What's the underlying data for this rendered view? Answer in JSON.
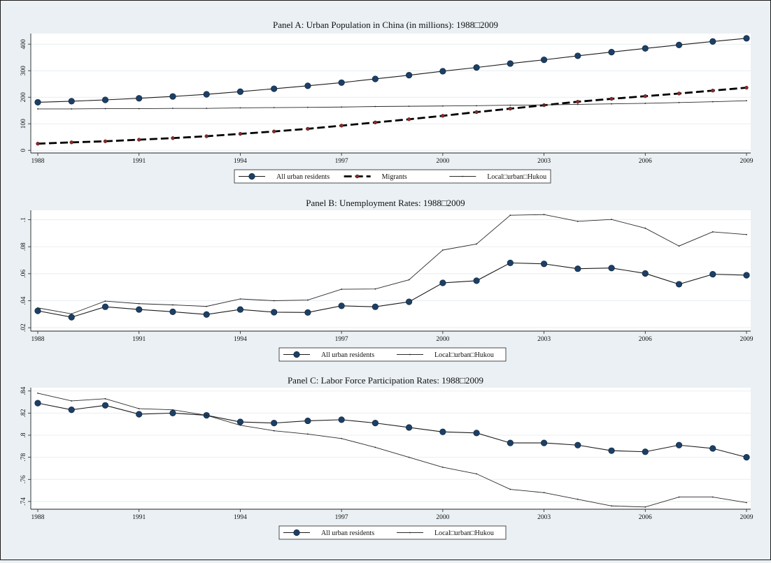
{
  "chart_data": [
    {
      "type": "line",
      "title": "Panel A: Urban Population in China (in millions): 1988□2009",
      "x": [
        1988,
        1989,
        1990,
        1991,
        1992,
        1993,
        1994,
        1995,
        1996,
        1997,
        1998,
        1999,
        2000,
        2001,
        2002,
        2003,
        2004,
        2005,
        2006,
        2007,
        2008,
        2009
      ],
      "xticks": [
        "1988",
        "1991",
        "1994",
        "1997",
        "2000",
        "2003",
        "2006",
        "2009"
      ],
      "xlim": [
        1988,
        2009
      ],
      "yticks": [
        "0",
        "100",
        "200",
        "300",
        "400"
      ],
      "ylim": [
        -10,
        440
      ],
      "grid": true,
      "legend_position": "bottom",
      "series": [
        {
          "name": "All urban residents",
          "style": "dot-line",
          "color": "#1c3f66",
          "values": [
            181,
            185,
            190,
            196,
            203,
            211,
            221,
            232,
            243,
            255,
            269,
            283,
            298,
            312,
            327,
            341,
            356,
            370,
            384,
            397,
            410,
            422
          ]
        },
        {
          "name": "Migrants",
          "style": "dashed-small-marker",
          "color": "#000000",
          "marker_color": "#8b2b2b",
          "values": [
            25,
            30,
            34,
            40,
            46,
            53,
            62,
            71,
            81,
            93,
            105,
            117,
            130,
            144,
            157,
            170,
            183,
            194,
            204,
            214,
            225,
            236
          ]
        },
        {
          "name": "Local□urban□Hukou",
          "style": "thin-line",
          "color": "#222222",
          "values": [
            156,
            156,
            157,
            157,
            158,
            158,
            160,
            161,
            162,
            163,
            165,
            166,
            167,
            168,
            170,
            171,
            173,
            175,
            177,
            180,
            183,
            187
          ]
        }
      ]
    },
    {
      "type": "line",
      "title": "Panel B: Unemployment Rates: 1988□2009",
      "x": [
        1988,
        1989,
        1990,
        1991,
        1992,
        1993,
        1994,
        1995,
        1996,
        1997,
        1998,
        1999,
        2000,
        2001,
        2002,
        2003,
        2004,
        2005,
        2006,
        2007,
        2008,
        2009
      ],
      "xticks": [
        "1988",
        "1991",
        "1994",
        "1997",
        "2000",
        "2003",
        "2006",
        "2009"
      ],
      "xlim": [
        1988,
        2009
      ],
      "yticks": [
        ".02",
        ".04",
        ".06",
        ".08",
        ".1"
      ],
      "ylim": [
        0.0175,
        0.107
      ],
      "grid": true,
      "legend_position": "bottom",
      "series": [
        {
          "name": "All urban residents",
          "style": "dot-line",
          "color": "#1c3f66",
          "values": [
            0.0325,
            0.0278,
            0.0355,
            0.0335,
            0.0318,
            0.0298,
            0.0335,
            0.0315,
            0.0313,
            0.0362,
            0.0355,
            0.0392,
            0.0532,
            0.0548,
            0.068,
            0.0673,
            0.0637,
            0.0642,
            0.0602,
            0.0522,
            0.0596,
            0.0589
          ]
        },
        {
          "name": "Local□urban□Hukou",
          "style": "thin-line",
          "color": "#222222",
          "values": [
            0.0347,
            0.0303,
            0.0397,
            0.0378,
            0.0369,
            0.0358,
            0.0413,
            0.04,
            0.0405,
            0.0485,
            0.0487,
            0.0555,
            0.0775,
            0.082,
            0.1033,
            0.1038,
            0.0988,
            0.1002,
            0.0937,
            0.0805,
            0.091,
            0.089
          ]
        }
      ]
    },
    {
      "type": "line",
      "title": "Panel C: Labor Force Participation Rates: 1988□2009",
      "x": [
        1988,
        1989,
        1990,
        1991,
        1992,
        1993,
        1994,
        1995,
        1996,
        1997,
        1998,
        1999,
        2000,
        2001,
        2002,
        2003,
        2004,
        2005,
        2006,
        2007,
        2008,
        2009
      ],
      "xticks": [
        "1988",
        "1991",
        "1994",
        "1997",
        "2000",
        "2003",
        "2006",
        "2009"
      ],
      "xlim": [
        1988,
        2009
      ],
      "yticks": [
        ".74",
        ".76",
        ".78",
        ".8",
        ".82",
        ".84"
      ],
      "ylim": [
        0.733,
        0.843
      ],
      "grid": true,
      "legend_position": "bottom",
      "series": [
        {
          "name": "All urban residents",
          "style": "dot-line",
          "color": "#1c3f66",
          "values": [
            0.829,
            0.823,
            0.827,
            0.819,
            0.82,
            0.818,
            0.812,
            0.811,
            0.813,
            0.814,
            0.811,
            0.807,
            0.803,
            0.802,
            0.793,
            0.793,
            0.791,
            0.786,
            0.785,
            0.791,
            0.788,
            0.78
          ]
        },
        {
          "name": "Local□urban□Hukou",
          "style": "thin-line",
          "color": "#222222",
          "values": [
            0.838,
            0.831,
            0.833,
            0.824,
            0.823,
            0.818,
            0.809,
            0.804,
            0.801,
            0.797,
            0.789,
            0.78,
            0.771,
            0.765,
            0.751,
            0.748,
            0.742,
            0.736,
            0.735,
            0.744,
            0.744,
            0.739
          ]
        }
      ]
    }
  ]
}
